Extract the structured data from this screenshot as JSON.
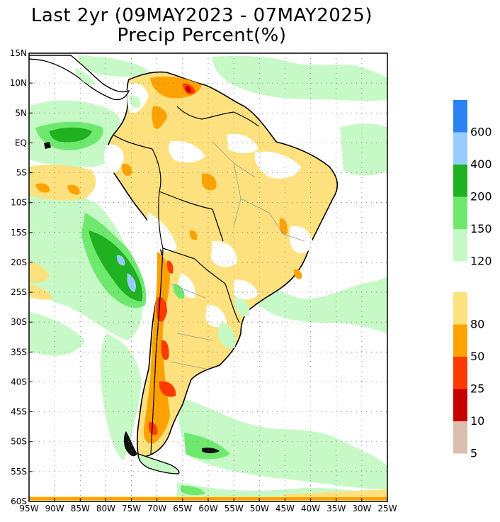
{
  "title": {
    "line1": "Last 2yr (09MAY2023 - 07MAY2025)",
    "line2": "Precip Percent(%)"
  },
  "map": {
    "lon_range": [
      -95,
      -25
    ],
    "lat_range": [
      -60,
      15
    ],
    "lon_labels": [
      "95W",
      "90W",
      "85W",
      "80W",
      "75W",
      "70W",
      "65W",
      "60W",
      "55W",
      "50W",
      "45W",
      "40W",
      "35W",
      "30W",
      "25W"
    ],
    "lat_labels": [
      "15N",
      "10N",
      "5N",
      "EQ",
      "5S",
      "10S",
      "15S",
      "20S",
      "25S",
      "30S",
      "35S",
      "40S",
      "45S",
      "50S",
      "55S",
      "60S"
    ],
    "gridlines": true
  },
  "legend": {
    "upper": [
      {
        "color": "#2a82f0",
        "label": "600"
      },
      {
        "color": "#97cdfd",
        "label": "400"
      },
      {
        "color": "#1fb11f",
        "label": "200"
      },
      {
        "color": "#6ee96e",
        "label": "150"
      },
      {
        "color": "#c7f9c7",
        "label": "120"
      }
    ],
    "lower": [
      {
        "color": "#fde17e",
        "label": "80"
      },
      {
        "color": "#fda200",
        "label": "50"
      },
      {
        "color": "#ff3a00",
        "label": "25"
      },
      {
        "color": "#c40000",
        "label": "10"
      },
      {
        "color": "#dcbdb0",
        "label": "5"
      }
    ]
  },
  "colors": {
    "wet_light": "#c7f9c7",
    "wet_mid": "#6ee96e",
    "wet_strong": "#1fb11f",
    "wet_blue": "#97cdfd",
    "dry_light": "#fde17e",
    "dry_mid": "#fda200",
    "dry_strong": "#ff3a00",
    "dry_extreme": "#c40000",
    "coastline": "#000000",
    "borders": "#9a9a9a"
  }
}
